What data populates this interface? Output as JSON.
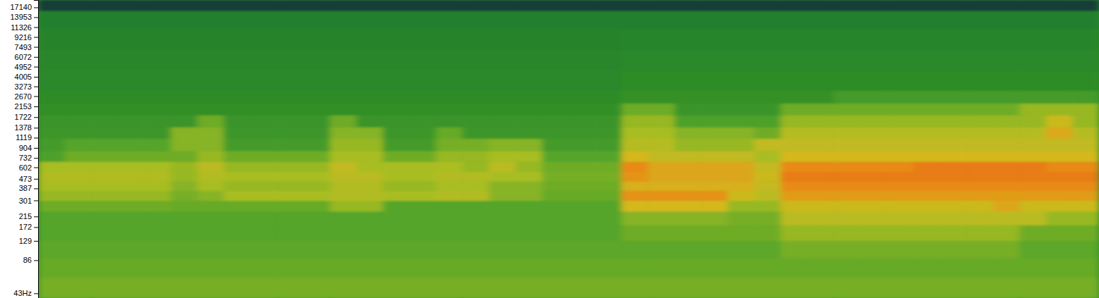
{
  "chart_data": {
    "type": "heatmap",
    "log": "y",
    "tick_labels": "y",
    "ylim": [
      39,
      20000
    ],
    "yticks": [
      17140,
      13953,
      11326,
      9216,
      7493,
      6072,
      4952,
      4005,
      3273,
      2670,
      2153,
      1722,
      1378,
      1119,
      904,
      732,
      602,
      473,
      387,
      301,
      215,
      172,
      129,
      86,
      {
        "value": 43,
        "label": "43Hz"
      }
    ],
    "zlim": [
      0,
      100
    ],
    "y_bins": [
      39,
      60,
      90,
      130,
      180,
      240,
      300,
      370,
      450,
      550,
      680,
      850,
      1100,
      1400,
      1800,
      2300,
      3000,
      4500,
      7000,
      11000,
      16000,
      20000
    ],
    "cells": [
      [
        56,
        56,
        56,
        56,
        56,
        56,
        56,
        56,
        56,
        56,
        56,
        56,
        56,
        56,
        56,
        56,
        56,
        56,
        56,
        56,
        56,
        56,
        56,
        56,
        56,
        56,
        56,
        56,
        56,
        56,
        56,
        56,
        56,
        56,
        56,
        56,
        56,
        56,
        56,
        56
      ],
      [
        54,
        54,
        54,
        54,
        54,
        54,
        54,
        54,
        54,
        54,
        54,
        54,
        54,
        54,
        54,
        54,
        54,
        54,
        54,
        54,
        54,
        54,
        54,
        54,
        54,
        54,
        54,
        54,
        54,
        54,
        54,
        54,
        54,
        54,
        54,
        54,
        54,
        54,
        54,
        54
      ],
      [
        53,
        53,
        53,
        53,
        53,
        53,
        53,
        53,
        53,
        53,
        53,
        53,
        53,
        53,
        53,
        53,
        53,
        53,
        53,
        53,
        53,
        53,
        53,
        53,
        53,
        53,
        53,
        53,
        56,
        56,
        56,
        56,
        56,
        56,
        56,
        56,
        56,
        53,
        53,
        53
      ],
      [
        52,
        52,
        52,
        52,
        52,
        52,
        52,
        52,
        52,
        52,
        52,
        52,
        52,
        52,
        52,
        52,
        52,
        52,
        52,
        52,
        52,
        52,
        55,
        55,
        55,
        55,
        55,
        55,
        60,
        60,
        60,
        60,
        60,
        60,
        60,
        60,
        60,
        55,
        55,
        55
      ],
      [
        52,
        52,
        52,
        52,
        52,
        52,
        52,
        52,
        52,
        52,
        52,
        52,
        52,
        52,
        52,
        52,
        52,
        52,
        52,
        52,
        52,
        52,
        58,
        58,
        58,
        58,
        56,
        56,
        66,
        66,
        66,
        66,
        66,
        66,
        66,
        66,
        66,
        66,
        60,
        60
      ],
      [
        55,
        55,
        55,
        55,
        55,
        54,
        54,
        54,
        54,
        54,
        54,
        60,
        60,
        52,
        52,
        52,
        52,
        52,
        52,
        52,
        52,
        52,
        72,
        72,
        72,
        72,
        60,
        60,
        70,
        70,
        70,
        70,
        70,
        70,
        70,
        70,
        76,
        70,
        70,
        70
      ],
      [
        60,
        60,
        60,
        60,
        60,
        56,
        58,
        62,
        62,
        62,
        62,
        64,
        64,
        62,
        62,
        64,
        64,
        58,
        58,
        54,
        54,
        54,
        80,
        80,
        80,
        80,
        70,
        66,
        78,
        78,
        78,
        78,
        78,
        78,
        78,
        78,
        78,
        78,
        78,
        78
      ],
      [
        62,
        62,
        62,
        62,
        62,
        58,
        62,
        60,
        60,
        60,
        60,
        64,
        64,
        60,
        60,
        62,
        62,
        58,
        58,
        55,
        55,
        55,
        74,
        74,
        74,
        74,
        74,
        68,
        82,
        82,
        82,
        82,
        82,
        82,
        82,
        82,
        82,
        82,
        82,
        82
      ],
      [
        64,
        64,
        64,
        64,
        64,
        60,
        64,
        62,
        62,
        62,
        62,
        66,
        66,
        62,
        62,
        64,
        64,
        62,
        62,
        56,
        56,
        56,
        80,
        76,
        76,
        76,
        76,
        70,
        85,
        85,
        85,
        85,
        85,
        85,
        85,
        85,
        85,
        85,
        85,
        85
      ],
      [
        62,
        62,
        62,
        62,
        62,
        60,
        66,
        60,
        60,
        60,
        60,
        68,
        62,
        62,
        62,
        63,
        60,
        66,
        60,
        55,
        55,
        55,
        82,
        76,
        76,
        76,
        76,
        68,
        82,
        82,
        82,
        82,
        82,
        85,
        85,
        85,
        85,
        85,
        82,
        82
      ],
      [
        50,
        55,
        55,
        55,
        55,
        55,
        60,
        55,
        55,
        55,
        55,
        62,
        62,
        55,
        55,
        60,
        60,
        62,
        62,
        52,
        52,
        52,
        72,
        68,
        68,
        68,
        68,
        62,
        72,
        72,
        72,
        72,
        72,
        72,
        72,
        72,
        72,
        72,
        72,
        72
      ],
      [
        48,
        52,
        52,
        52,
        52,
        58,
        58,
        48,
        48,
        48,
        48,
        60,
        60,
        48,
        48,
        56,
        56,
        58,
        58,
        48,
        48,
        48,
        65,
        65,
        60,
        60,
        60,
        68,
        68,
        68,
        68,
        68,
        68,
        68,
        68,
        68,
        68,
        68,
        68,
        68
      ],
      [
        46,
        46,
        46,
        46,
        46,
        58,
        58,
        46,
        46,
        46,
        46,
        58,
        58,
        46,
        46,
        54,
        46,
        46,
        46,
        46,
        46,
        46,
        62,
        62,
        58,
        58,
        58,
        55,
        65,
        65,
        65,
        65,
        65,
        65,
        65,
        65,
        65,
        65,
        75,
        65
      ],
      [
        45,
        45,
        45,
        45,
        45,
        45,
        55,
        45,
        45,
        45,
        45,
        55,
        45,
        45,
        45,
        45,
        45,
        45,
        45,
        45,
        45,
        45,
        60,
        60,
        50,
        50,
        50,
        50,
        60,
        60,
        60,
        60,
        60,
        60,
        60,
        60,
        60,
        60,
        70,
        60
      ],
      [
        43,
        43,
        43,
        43,
        43,
        43,
        43,
        43,
        43,
        43,
        43,
        43,
        43,
        43,
        43,
        43,
        43,
        43,
        43,
        43,
        43,
        43,
        55,
        55,
        45,
        45,
        45,
        45,
        55,
        55,
        55,
        55,
        55,
        55,
        55,
        55,
        55,
        60,
        60,
        60
      ],
      [
        42,
        42,
        42,
        42,
        42,
        42,
        42,
        42,
        42,
        42,
        42,
        42,
        42,
        42,
        42,
        42,
        42,
        42,
        42,
        42,
        42,
        42,
        44,
        44,
        44,
        44,
        44,
        44,
        44,
        44,
        48,
        48,
        48,
        48,
        48,
        48,
        48,
        48,
        48,
        48
      ],
      [
        40,
        40,
        40,
        40,
        40,
        40,
        40,
        40,
        40,
        40,
        40,
        40,
        40,
        40,
        40,
        40,
        40,
        40,
        40,
        40,
        40,
        40,
        42,
        42,
        42,
        42,
        42,
        42,
        42,
        42,
        42,
        42,
        42,
        42,
        42,
        42,
        42,
        42,
        42,
        42
      ],
      [
        38,
        38,
        38,
        38,
        38,
        38,
        38,
        38,
        38,
        38,
        38,
        38,
        38,
        38,
        38,
        38,
        38,
        38,
        38,
        38,
        38,
        38,
        40,
        40,
        40,
        40,
        40,
        40,
        40,
        40,
        40,
        40,
        40,
        40,
        40,
        40,
        40,
        40,
        40,
        40
      ],
      [
        36,
        36,
        36,
        36,
        36,
        36,
        36,
        36,
        36,
        36,
        36,
        36,
        36,
        36,
        36,
        36,
        36,
        36,
        36,
        36,
        36,
        36,
        37,
        37,
        37,
        37,
        37,
        37,
        37,
        37,
        37,
        37,
        37,
        37,
        37,
        37,
        37,
        37,
        37,
        37
      ],
      [
        33,
        33,
        33,
        33,
        33,
        33,
        33,
        33,
        33,
        33,
        33,
        33,
        33,
        33,
        33,
        33,
        33,
        33,
        33,
        33,
        33,
        33,
        33,
        33,
        33,
        33,
        33,
        33,
        33,
        33,
        33,
        33,
        33,
        33,
        33,
        33,
        33,
        33,
        33,
        33
      ],
      [
        10,
        10,
        10,
        10,
        10,
        10,
        10,
        10,
        10,
        10,
        10,
        10,
        10,
        10,
        10,
        10,
        10,
        10,
        10,
        10,
        10,
        10,
        10,
        10,
        10,
        10,
        10,
        10,
        10,
        10,
        10,
        10,
        10,
        10,
        10,
        10,
        10,
        10,
        10,
        10
      ]
    ]
  }
}
